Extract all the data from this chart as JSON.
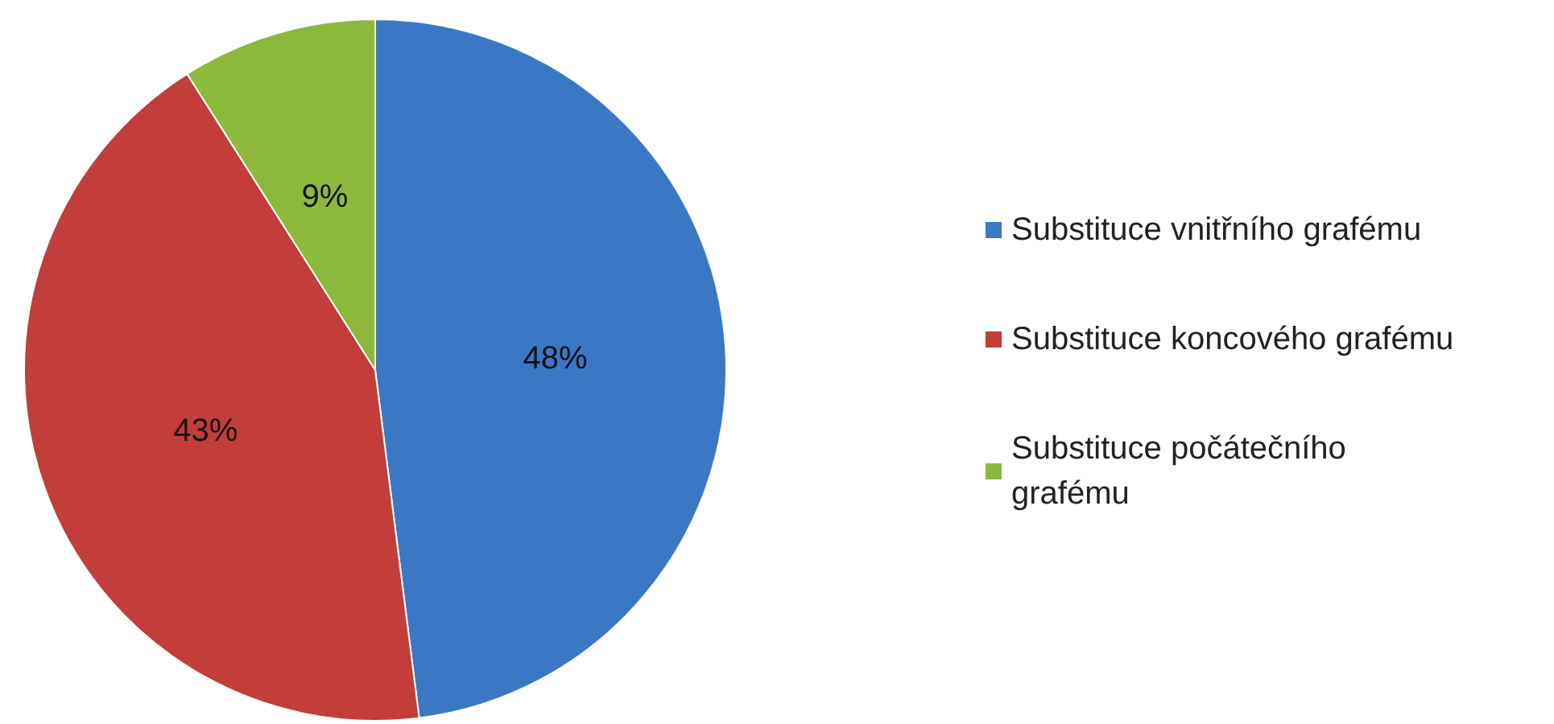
{
  "chart_data": {
    "type": "pie",
    "categories": [
      "Substituce vnitřního grafému",
      "Substituce koncového grafému",
      "Substituce počátečního grafému"
    ],
    "values": [
      48,
      43,
      9
    ],
    "colors": [
      "#3a78c6",
      "#c33d3a",
      "#8cb83c"
    ],
    "value_labels": [
      "48%",
      "43%",
      "9%"
    ],
    "legend": "right"
  }
}
